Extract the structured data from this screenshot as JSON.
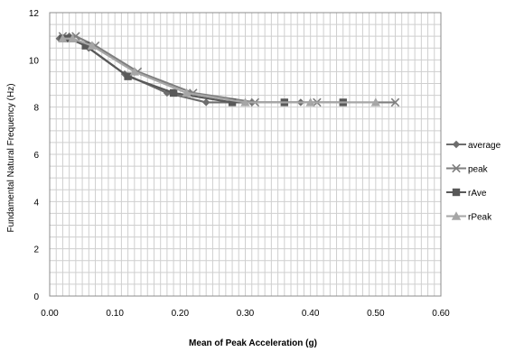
{
  "chart_data": {
    "type": "line",
    "title": "",
    "xlabel": "Mean of Peak Acceleration (g)",
    "ylabel": "Fundamental Natural Frequency (Hz)",
    "xlim": [
      0,
      0.6
    ],
    "ylim": [
      0,
      12
    ],
    "x_ticks": [
      "0.00",
      "0.10",
      "0.20",
      "0.30",
      "0.40",
      "0.50",
      "0.60"
    ],
    "y_ticks": [
      "0",
      "2",
      "4",
      "6",
      "8",
      "10",
      "12"
    ],
    "grid": true,
    "legend_position": "right",
    "series": [
      {
        "name": "average",
        "marker": "diamond",
        "color": "#6d6d6d",
        "points": [
          [
            0.015,
            10.9
          ],
          [
            0.03,
            11.0
          ],
          [
            0.06,
            10.5
          ],
          [
            0.115,
            9.4
          ],
          [
            0.18,
            8.6
          ],
          [
            0.24,
            8.2
          ],
          [
            0.31,
            8.2
          ],
          [
            0.385,
            8.2
          ]
        ]
      },
      {
        "name": "peak",
        "marker": "x",
        "color": "#7f7f7f",
        "points": [
          [
            0.02,
            11.0
          ],
          [
            0.04,
            11.0
          ],
          [
            0.07,
            10.6
          ],
          [
            0.135,
            9.5
          ],
          [
            0.22,
            8.6
          ],
          [
            0.315,
            8.2
          ],
          [
            0.41,
            8.2
          ],
          [
            0.53,
            8.2
          ]
        ]
      },
      {
        "name": "rAve",
        "marker": "square",
        "color": "#595959",
        "points": [
          [
            0.02,
            10.9
          ],
          [
            0.03,
            10.9
          ],
          [
            0.055,
            10.6
          ],
          [
            0.12,
            9.3
          ],
          [
            0.19,
            8.6
          ],
          [
            0.28,
            8.2
          ],
          [
            0.36,
            8.2
          ],
          [
            0.45,
            8.2
          ]
        ]
      },
      {
        "name": "rPeak",
        "marker": "triangle",
        "color": "#a6a6a6",
        "points": [
          [
            0.02,
            10.9
          ],
          [
            0.035,
            10.9
          ],
          [
            0.065,
            10.6
          ],
          [
            0.13,
            9.5
          ],
          [
            0.21,
            8.6
          ],
          [
            0.3,
            8.2
          ],
          [
            0.4,
            8.2
          ],
          [
            0.5,
            8.2
          ]
        ]
      }
    ]
  }
}
